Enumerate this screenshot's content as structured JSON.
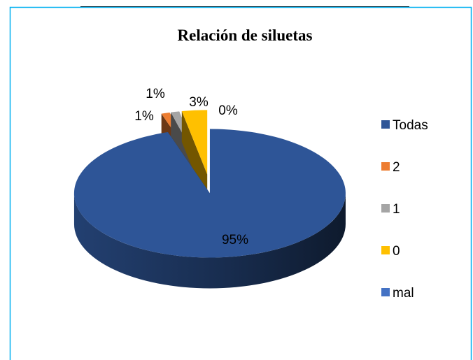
{
  "chart_data": {
    "type": "pie3d",
    "title": "Relación de siluetas",
    "categories": [
      "Todas",
      "2",
      "1",
      "0",
      "mal"
    ],
    "values": [
      95,
      1,
      1,
      3,
      0
    ],
    "value_labels": [
      "95%",
      "1%",
      "1%",
      "3%",
      "0%"
    ],
    "colors": [
      "#2E5597",
      "#ED7D31",
      "#A5A5A5",
      "#FFC000",
      "#4472C4"
    ],
    "legend": "right"
  }
}
